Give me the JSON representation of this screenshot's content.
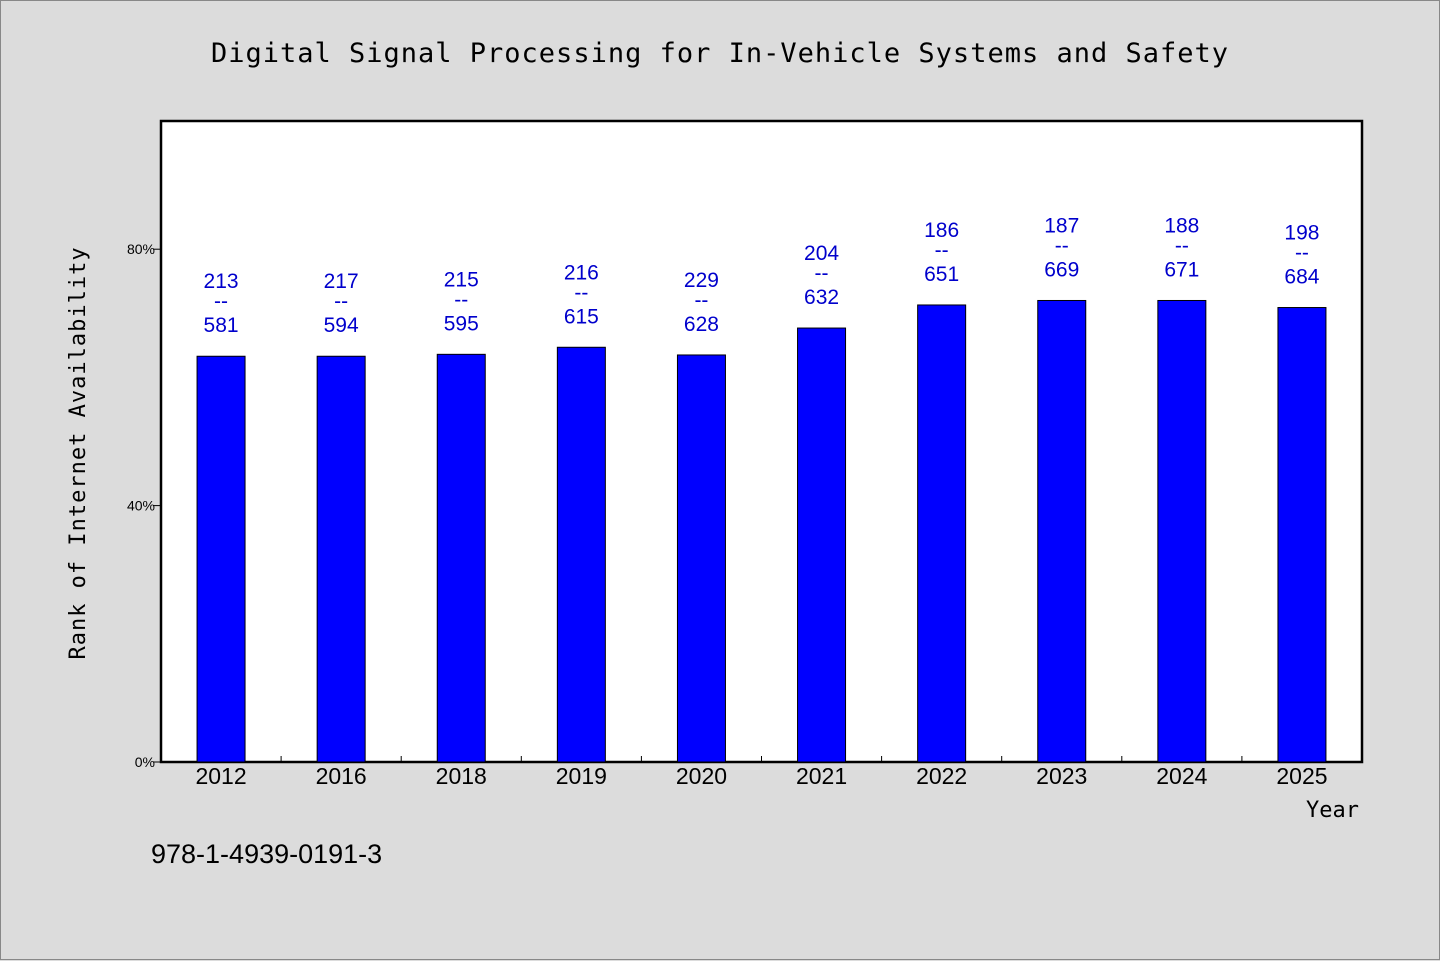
{
  "chart_data": {
    "type": "bar",
    "title": "Digital Signal Processing for In-Vehicle Systems and Safety",
    "xlabel": "Year",
    "ylabel": "Rank of Internet Availability",
    "ylim": [
      0,
      100
    ],
    "yticks": [
      0,
      40,
      80
    ],
    "ytick_labels": [
      "0%",
      "40%",
      "80%"
    ],
    "grid": false,
    "legend": "none",
    "categories": [
      "2012",
      "2016",
      "2018",
      "2019",
      "2020",
      "2021",
      "2022",
      "2023",
      "2024",
      "2025"
    ],
    "values": [
      63.3,
      63.3,
      63.6,
      64.7,
      63.5,
      67.7,
      71.3,
      72.0,
      72.0,
      70.9
    ],
    "data_labels": [
      {
        "top": "213",
        "sep": "--",
        "bottom": "581"
      },
      {
        "top": "217",
        "sep": "--",
        "bottom": "594"
      },
      {
        "top": "215",
        "sep": "--",
        "bottom": "595"
      },
      {
        "top": "216",
        "sep": "--",
        "bottom": "615"
      },
      {
        "top": "229",
        "sep": "--",
        "bottom": "628"
      },
      {
        "top": "204",
        "sep": "--",
        "bottom": "632"
      },
      {
        "top": "186",
        "sep": "--",
        "bottom": "651"
      },
      {
        "top": "187",
        "sep": "--",
        "bottom": "669"
      },
      {
        "top": "188",
        "sep": "--",
        "bottom": "671"
      },
      {
        "top": "198",
        "sep": "--",
        "bottom": "684"
      }
    ],
    "bar_color": "#0000ff",
    "label_color": "#0000cc",
    "plot_background": "#ffffff",
    "page_background": "#dcdcdc"
  },
  "footnote": "978-1-4939-0191-3"
}
